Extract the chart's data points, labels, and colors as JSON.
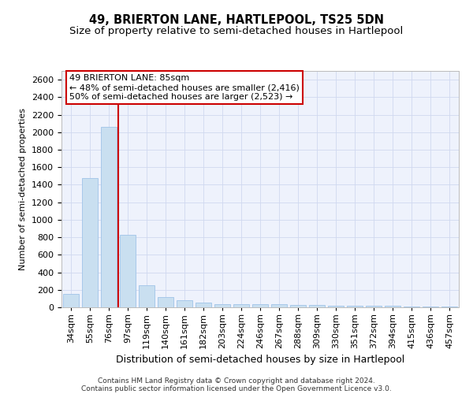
{
  "title": "49, BRIERTON LANE, HARTLEPOOL, TS25 5DN",
  "subtitle": "Size of property relative to semi-detached houses in Hartlepool",
  "xlabel": "Distribution of semi-detached houses by size in Hartlepool",
  "ylabel": "Number of semi-detached properties",
  "categories": [
    "34sqm",
    "55sqm",
    "76sqm",
    "97sqm",
    "119sqm",
    "140sqm",
    "161sqm",
    "182sqm",
    "203sqm",
    "224sqm",
    "246sqm",
    "267sqm",
    "288sqm",
    "309sqm",
    "330sqm",
    "351sqm",
    "372sqm",
    "394sqm",
    "415sqm",
    "436sqm",
    "457sqm"
  ],
  "values": [
    150,
    1480,
    2060,
    830,
    250,
    115,
    80,
    55,
    40,
    35,
    35,
    35,
    30,
    25,
    20,
    20,
    15,
    15,
    10,
    10,
    8
  ],
  "bar_color": "#c9dff0",
  "bar_edge_color": "#a0c4e8",
  "grid_color": "#d0d8f0",
  "background_color": "#eef2fc",
  "property_bin_index": 2,
  "annotation_title": "49 BRIERTON LANE: 85sqm",
  "annotation_line1": "← 48% of semi-detached houses are smaller (2,416)",
  "annotation_line2": "50% of semi-detached houses are larger (2,523) →",
  "annotation_box_color": "#ffffff",
  "annotation_border_color": "#cc0000",
  "vline_color": "#cc0000",
  "footnote_line1": "Contains HM Land Registry data © Crown copyright and database right 2024.",
  "footnote_line2": "Contains public sector information licensed under the Open Government Licence v3.0.",
  "ylim": [
    0,
    2700
  ],
  "yticks": [
    0,
    200,
    400,
    600,
    800,
    1000,
    1200,
    1400,
    1600,
    1800,
    2000,
    2200,
    2400,
    2600
  ],
  "title_fontsize": 10.5,
  "subtitle_fontsize": 9.5,
  "xlabel_fontsize": 9,
  "ylabel_fontsize": 8,
  "tick_fontsize": 8,
  "annotation_fontsize": 8,
  "footnote_fontsize": 6.5
}
